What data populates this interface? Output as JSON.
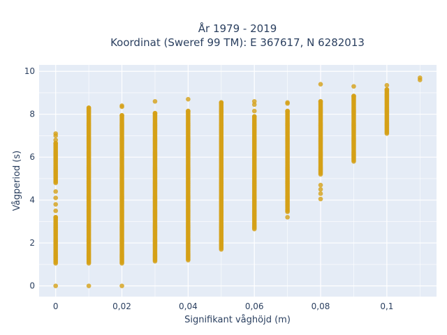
{
  "chart_data": {
    "type": "scatter",
    "title": "År 1979 - 2019",
    "subtitle": "Koordinat (Sweref 99 TM): E 367617, N 6282013",
    "xlabel": "Signifikant våghöjd (m)",
    "ylabel": "Vågperiod (s)",
    "xlim": [
      -0.005,
      0.115
    ],
    "ylim": [
      -0.5,
      10.3
    ],
    "x_ticks": [
      0,
      0.02,
      0.04,
      0.06,
      0.08,
      0.1
    ],
    "x_tick_labels": [
      "0",
      "0,02",
      "0,04",
      "0,06",
      "0,08",
      "0,1"
    ],
    "y_ticks": [
      0,
      2,
      4,
      6,
      8,
      10
    ],
    "y_tick_labels": [
      "0",
      "2",
      "4",
      "6",
      "8",
      "10"
    ],
    "grid": true,
    "marker_color": "#d4a017",
    "plot_background": "#e5ecf6",
    "columns": [
      {
        "x": 0,
        "runs": [
          [
            1.05,
            3.2
          ],
          [
            4.8,
            6.65
          ]
        ],
        "extra": [
          0,
          3.5,
          3.8,
          4.1,
          4.4,
          6.8,
          7.0,
          7.1
        ]
      },
      {
        "x": 0.01,
        "runs": [
          [
            1.05,
            8.3
          ]
        ],
        "extra": [
          0
        ]
      },
      {
        "x": 0.02,
        "runs": [
          [
            1.05,
            7.95
          ]
        ],
        "extra": [
          0,
          8.35,
          8.4
        ]
      },
      {
        "x": 0.03,
        "runs": [
          [
            1.15,
            8.05
          ]
        ],
        "extra": [
          8.6
        ]
      },
      {
        "x": 0.04,
        "runs": [
          [
            1.2,
            8.15
          ]
        ],
        "extra": [
          8.7
        ]
      },
      {
        "x": 0.05,
        "runs": [
          [
            1.7,
            8.55
          ]
        ],
        "extra": []
      },
      {
        "x": 0.06,
        "runs": [
          [
            2.65,
            7.9
          ]
        ],
        "extra": [
          8.15,
          8.45,
          8.6
        ]
      },
      {
        "x": 0.07,
        "runs": [
          [
            3.45,
            8.15
          ]
        ],
        "extra": [
          3.2,
          8.5,
          8.55
        ]
      },
      {
        "x": 0.08,
        "runs": [
          [
            5.2,
            8.6
          ]
        ],
        "extra": [
          4.05,
          4.3,
          4.5,
          4.7,
          9.4
        ]
      },
      {
        "x": 0.09,
        "runs": [
          [
            5.8,
            8.85
          ]
        ],
        "extra": [
          9.3
        ]
      },
      {
        "x": 0.1,
        "runs": [
          [
            7.1,
            9.15
          ]
        ],
        "extra": [
          9.35
        ]
      },
      {
        "x": 0.11,
        "runs": [],
        "extra": [
          9.6,
          9.7
        ]
      }
    ]
  }
}
